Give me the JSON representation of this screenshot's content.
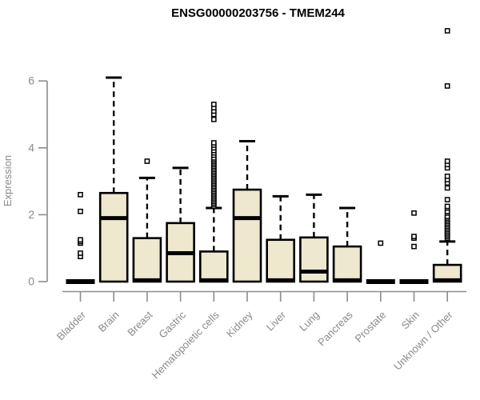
{
  "chart_data": {
    "type": "boxplot",
    "title": "ENSG00000203756 - TMEM244",
    "ylabel": "Expression",
    "xlabel": "",
    "yticks": [
      0,
      2,
      4,
      6
    ],
    "ylim": [
      0,
      7.7
    ],
    "grid": false,
    "legend": "none",
    "categories": [
      "Bladder",
      "Brain",
      "Breast",
      "Gastric",
      "Hematopoietic cells",
      "Kidney",
      "Liver",
      "Lung",
      "Pancreas",
      "Prostate",
      "Skin",
      "Unknown / Other"
    ],
    "boxes": [
      {
        "category": "Bladder",
        "low": 0,
        "q1": 0,
        "median": 0,
        "q3": 0,
        "high": 0,
        "outliers": [
          0.75,
          0.85,
          1.15,
          1.2,
          1.25,
          2.1,
          2.6
        ]
      },
      {
        "category": "Brain",
        "low": 0,
        "q1": 0,
        "median": 1.9,
        "q3": 2.65,
        "high": 6.1,
        "outliers": []
      },
      {
        "category": "Breast",
        "low": 0,
        "q1": 0,
        "median": 0.04,
        "q3": 1.3,
        "high": 3.1,
        "outliers": [
          3.6
        ]
      },
      {
        "category": "Gastric",
        "low": 0,
        "q1": 0,
        "median": 0.85,
        "q3": 1.75,
        "high": 3.4,
        "outliers": []
      },
      {
        "category": "Hematopoietic cells",
        "low": 0,
        "q1": 0,
        "median": 0.04,
        "q3": 0.9,
        "high": 2.2,
        "outliers": [
          2.25,
          2.3,
          2.35,
          2.4,
          2.45,
          2.5,
          2.55,
          2.6,
          2.65,
          2.7,
          2.75,
          2.8,
          2.85,
          2.9,
          2.95,
          3.0,
          3.05,
          3.1,
          3.15,
          3.2,
          3.25,
          3.3,
          3.35,
          3.4,
          3.45,
          3.5,
          3.55,
          3.6,
          3.65,
          3.7,
          3.78,
          3.85,
          3.92,
          4.0,
          4.08,
          4.15,
          4.85,
          5.0,
          5.1,
          5.2,
          5.3
        ]
      },
      {
        "category": "Kidney",
        "low": 0,
        "q1": 0,
        "median": 1.9,
        "q3": 2.75,
        "high": 4.2,
        "outliers": []
      },
      {
        "category": "Liver",
        "low": 0,
        "q1": 0,
        "median": 0.04,
        "q3": 1.25,
        "high": 2.55,
        "outliers": []
      },
      {
        "category": "Lung",
        "low": 0,
        "q1": 0,
        "median": 0.3,
        "q3": 1.32,
        "high": 2.6,
        "outliers": []
      },
      {
        "category": "Pancreas",
        "low": 0,
        "q1": 0,
        "median": 0.04,
        "q3": 1.05,
        "high": 2.2,
        "outliers": []
      },
      {
        "category": "Prostate",
        "low": 0,
        "q1": 0,
        "median": 0,
        "q3": 0,
        "high": 0,
        "outliers": [
          1.15
        ]
      },
      {
        "category": "Skin",
        "low": 0,
        "q1": 0,
        "median": 0,
        "q3": 0,
        "high": 0,
        "outliers": [
          1.05,
          1.3,
          1.35,
          2.05
        ]
      },
      {
        "category": "Unknown / Other",
        "low": 0,
        "q1": 0,
        "median": 0.04,
        "q3": 0.5,
        "high": 1.2,
        "outliers": [
          1.3,
          1.35,
          1.4,
          1.45,
          1.5,
          1.55,
          1.6,
          1.65,
          1.7,
          1.75,
          1.8,
          1.85,
          1.9,
          1.95,
          2.05,
          2.1,
          2.2,
          2.25,
          2.45,
          2.8,
          2.95,
          3.05,
          3.15,
          3.4,
          3.5,
          3.6,
          5.85,
          7.5
        ]
      }
    ],
    "colors": {
      "box_fill": "#EDE8CE",
      "box_stroke": "#000000",
      "median": "#000000",
      "whisker": "#000000",
      "outlier_stroke": "#000000",
      "outlier_fill": "#ffffff",
      "axis": "#8C8C8C",
      "tick_label": "#8A8A8A",
      "title": "#000000",
      "background": "#FFFFFF"
    }
  }
}
